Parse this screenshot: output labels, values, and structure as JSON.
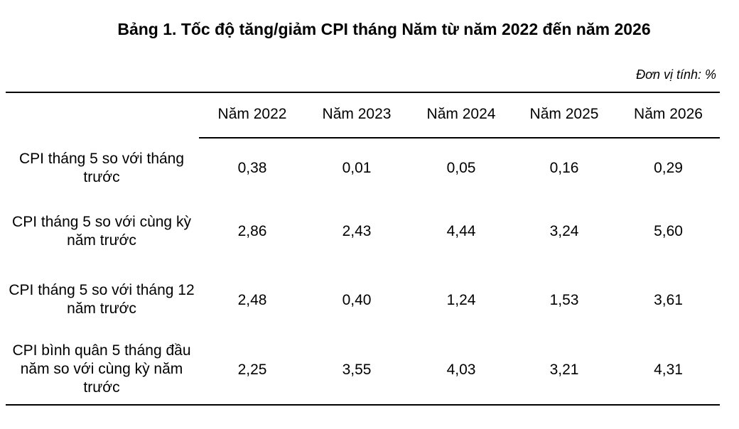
{
  "title": "Bảng 1. Tốc độ tăng/giảm CPI tháng Năm từ năm 2022 đến năm 2026",
  "unit_note": "Đơn vị tính: %",
  "table": {
    "columns": [
      "Năm 2022",
      "Năm 2023",
      "Năm 2024",
      "Năm 2025",
      "Năm 2026"
    ],
    "rows": [
      {
        "label": "CPI tháng 5 so với tháng trước",
        "values": [
          "0,38",
          "0,01",
          "0,05",
          "0,16",
          "0,29"
        ]
      },
      {
        "label": "CPI tháng 5 so với cùng kỳ năm trước",
        "values": [
          "2,86",
          "2,43",
          "4,44",
          "3,24",
          "5,60"
        ]
      },
      {
        "label": "CPI tháng 5 so với tháng 12 năm trước",
        "values": [
          "2,48",
          "0,40",
          "1,24",
          "1,53",
          "3,61"
        ]
      },
      {
        "label": "CPI bình quân 5 tháng đầu năm so với cùng kỳ năm trước",
        "values": [
          "2,25",
          "3,55",
          "4,03",
          "3,21",
          "4,31"
        ]
      }
    ]
  }
}
